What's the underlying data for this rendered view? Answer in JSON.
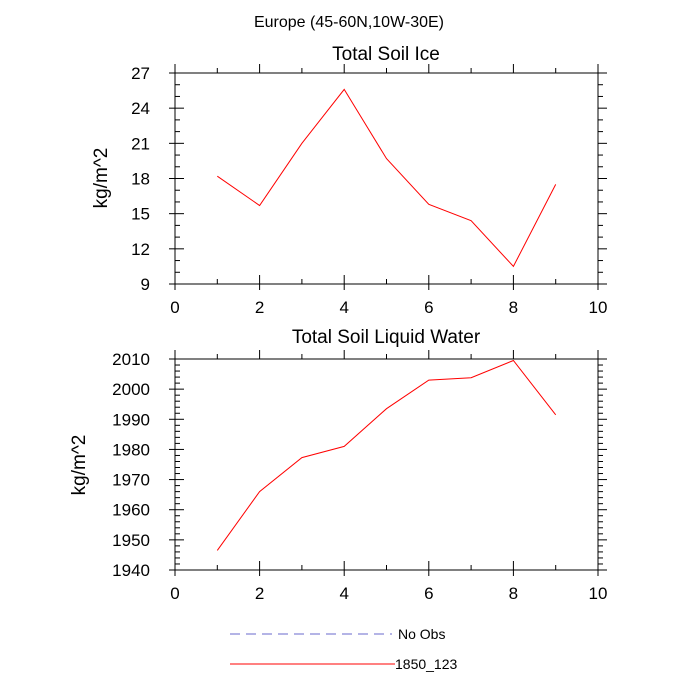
{
  "suptitle": "Europe (45-60N,10W-30E)",
  "legend": {
    "items": [
      {
        "label": "No Obs",
        "color": "#6a6acd",
        "dash": true
      },
      {
        "label": "1850_123",
        "color": "#ff0000",
        "dash": false
      }
    ]
  },
  "chart_data": [
    {
      "type": "line",
      "title": "Total Soil Ice",
      "xlabel": "",
      "ylabel": "kg/m^2",
      "xlim": [
        0,
        10
      ],
      "ylim": [
        9,
        27
      ],
      "xticks": [
        0,
        2,
        4,
        6,
        8,
        10
      ],
      "xminor": [
        1,
        3,
        5,
        7,
        9
      ],
      "yticks": [
        9,
        12,
        15,
        18,
        21,
        24,
        27
      ],
      "yminor_step": 1,
      "grid": false,
      "series": [
        {
          "name": "1850_123",
          "color": "#ff0000",
          "x": [
            1,
            2,
            3,
            4,
            5,
            6,
            7,
            8,
            9
          ],
          "y": [
            18.2,
            15.7,
            21.0,
            25.6,
            19.7,
            15.8,
            14.4,
            10.5,
            17.5
          ]
        }
      ]
    },
    {
      "type": "line",
      "title": "Total Soil Liquid Water",
      "xlabel": "",
      "ylabel": "kg/m^2",
      "xlim": [
        0,
        10
      ],
      "ylim": [
        1940,
        2010
      ],
      "xticks": [
        0,
        2,
        4,
        6,
        8,
        10
      ],
      "xminor": [
        1,
        3,
        5,
        7,
        9
      ],
      "yticks": [
        1940,
        1950,
        1960,
        1970,
        1980,
        1990,
        2000,
        2010
      ],
      "yminor_step": 2,
      "grid": false,
      "series": [
        {
          "name": "1850_123",
          "color": "#ff0000",
          "x": [
            1,
            2,
            3,
            4,
            5,
            6,
            7,
            8,
            9
          ],
          "y": [
            1946.5,
            1966,
            1977.3,
            1981,
            1993.5,
            2003,
            2003.8,
            2009.5,
            1991.5
          ]
        }
      ]
    }
  ]
}
